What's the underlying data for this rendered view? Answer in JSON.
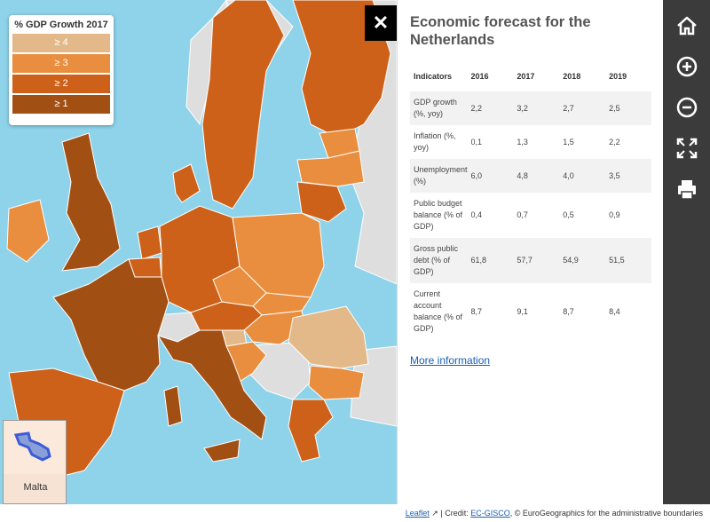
{
  "legend": {
    "title": "% GDP Growth 2017",
    "items": [
      {
        "label": "≥ 4",
        "color": "#e3b98a"
      },
      {
        "label": "≥ 3",
        "color": "#e98e3e"
      },
      {
        "label": "≥ 2",
        "color": "#cd6119"
      },
      {
        "label": "≥ 1",
        "color": "#a24f14"
      }
    ]
  },
  "inset": {
    "label": "Malta"
  },
  "close": {
    "glyph": "✕"
  },
  "panel": {
    "title": "Economic forecast for the Netherlands",
    "columns": [
      "Indicators",
      "2016",
      "2017",
      "2018",
      "2019"
    ],
    "rows": [
      {
        "name": "GDP growth (%, yoy)",
        "v2016": "2,2",
        "v2017": "3,2",
        "v2018": "2,7",
        "v2019": "2,5"
      },
      {
        "name": "Inflation (%, yoy)",
        "v2016": "0,1",
        "v2017": "1,3",
        "v2018": "1,5",
        "v2019": "2,2"
      },
      {
        "name": "Unemployment (%)",
        "v2016": "6,0",
        "v2017": "4,8",
        "v2018": "4,0",
        "v2019": "3,5"
      },
      {
        "name": "Public budget balance (% of GDP)",
        "v2016": "0,4",
        "v2017": "0,7",
        "v2018": "0,5",
        "v2019": "0,9"
      },
      {
        "name": "Gross public debt (% of GDP)",
        "v2016": "61,8",
        "v2017": "57,7",
        "v2018": "54,9",
        "v2019": "51,5"
      },
      {
        "name": "Current account balance (% of GDP)",
        "v2016": "8,7",
        "v2017": "9,1",
        "v2018": "8,7",
        "v2019": "8,4"
      }
    ],
    "more_link": "More information"
  },
  "toolbar": {
    "icons": [
      "home-icon",
      "zoom-in-icon",
      "zoom-out-icon",
      "fullscreen-icon",
      "print-icon"
    ]
  },
  "footer": {
    "leaflet": "Leaflet",
    "credit_prefix": "| Credit:",
    "ec_gisco": "EC-GISCO",
    "credit_suffix": ", © EuroGeographics for the administrative boundaries"
  }
}
